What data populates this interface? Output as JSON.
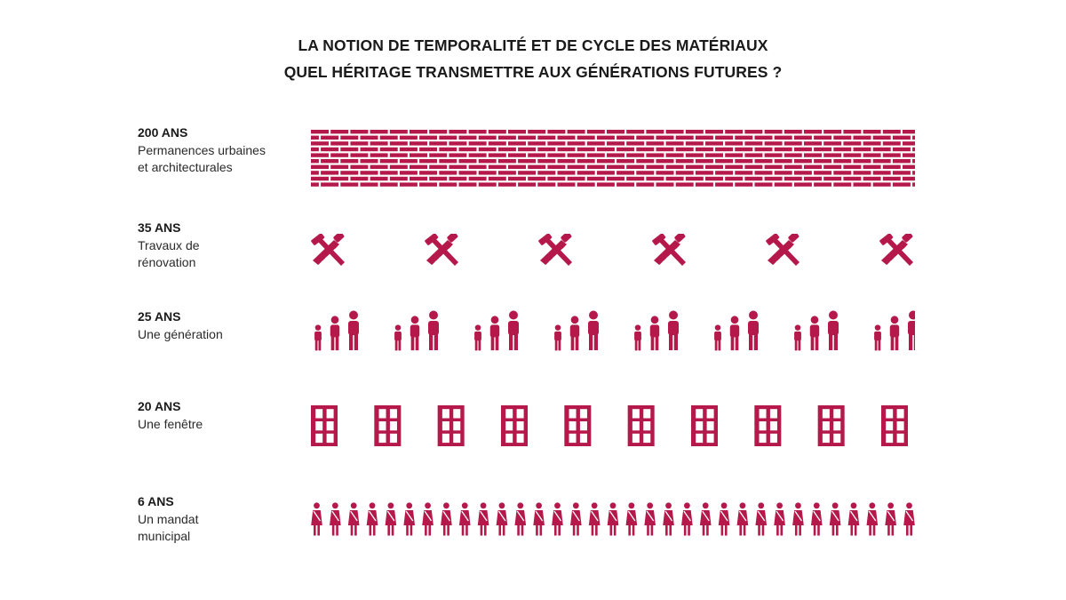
{
  "title": {
    "line1": "LA NOTION DE TEMPORALITÉ ET DE CYCLE DES MATÉRIAUX",
    "line2": "QUEL HÉRITAGE TRANSMETTRE AUX GÉNÉRATIONS FUTURES ?"
  },
  "accent_color": "#b5184a",
  "rows": [
    {
      "years": "200 ANS",
      "desc": "Permanences urbaines\net architecturales",
      "icon": "brick-wall-icon",
      "count": 1
    },
    {
      "years": "35 ANS",
      "desc": "Travaux de\nrénovation",
      "icon": "hammer-saw-icon",
      "count": 6
    },
    {
      "years": "25 ANS",
      "desc": "Une génération",
      "icon": "family-icon",
      "count": 8
    },
    {
      "years": "20 ANS",
      "desc": "Une fenêtre",
      "icon": "window-icon",
      "count": 10
    },
    {
      "years": "6 ANS",
      "desc": "Un mandat\nmunicipal",
      "icon": "mayor-icon",
      "count": 33
    }
  ]
}
